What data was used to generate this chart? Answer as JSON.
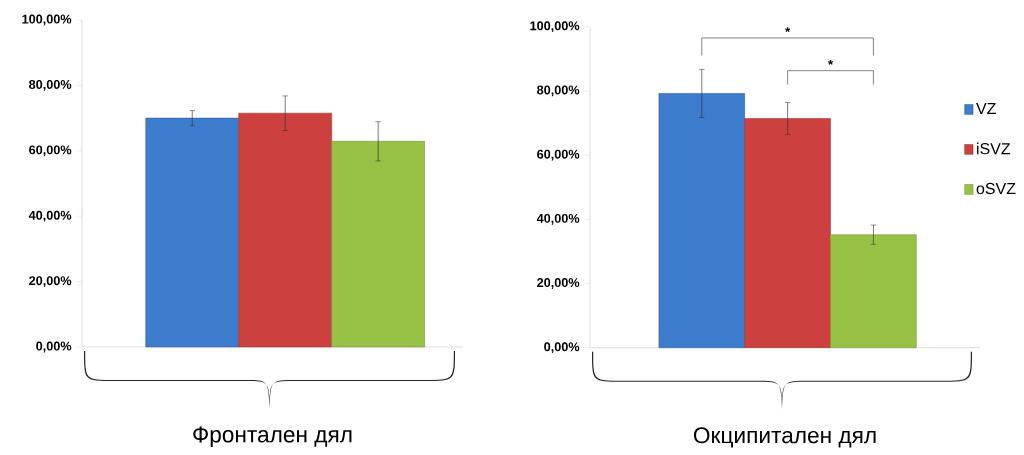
{
  "chart_data": [
    {
      "type": "bar",
      "categories": [
        null
      ],
      "xlabel": "Фронтален дял",
      "series": [
        {
          "color": "#3d7bcc",
          "values": [
            70
          ],
          "errors": [
            2.3
          ]
        },
        {
          "color": "#cc4040",
          "values": [
            71.5
          ],
          "errors": [
            5.3
          ]
        },
        {
          "color": "#98c245",
          "values": [
            62.9
          ],
          "errors": [
            6
          ]
        }
      ],
      "ylim": [
        0,
        100
      ],
      "yticks": [
        {
          "value": 0,
          "label": "0,00%"
        },
        {
          "value": 20,
          "label": "20,00%"
        },
        {
          "value": 40,
          "label": "40,00%"
        },
        {
          "value": 60,
          "label": "60,00%"
        },
        {
          "value": 80,
          "label": "80,00%"
        },
        {
          "value": 100,
          "label": "100,00%"
        }
      ],
      "legend": false
    },
    {
      "type": "bar",
      "categories": [
        null
      ],
      "xlabel": "Окципитален дял",
      "series": [
        {
          "name": "VZ",
          "color": "#3d7bcc",
          "values": [
            79.2
          ],
          "errors": [
            7.5
          ]
        },
        {
          "name": "iSVZ",
          "color": "#cc4040",
          "values": [
            71.4
          ],
          "errors": [
            5
          ]
        },
        {
          "name": "oSVZ",
          "color": "#98c245",
          "values": [
            35.2
          ],
          "errors": [
            3
          ]
        }
      ],
      "ylim": [
        0,
        100
      ],
      "yticks": [
        {
          "value": 0,
          "label": "0,00%"
        },
        {
          "value": 20,
          "label": "20,00%"
        },
        {
          "value": 40,
          "label": "40,00%"
        },
        {
          "value": 60,
          "label": "60,00%"
        },
        {
          "value": 80,
          "label": "80,00%"
        },
        {
          "value": 100,
          "label": "100,00%"
        }
      ],
      "legend": "right",
      "annotations": [
        "*",
        "*"
      ]
    }
  ]
}
